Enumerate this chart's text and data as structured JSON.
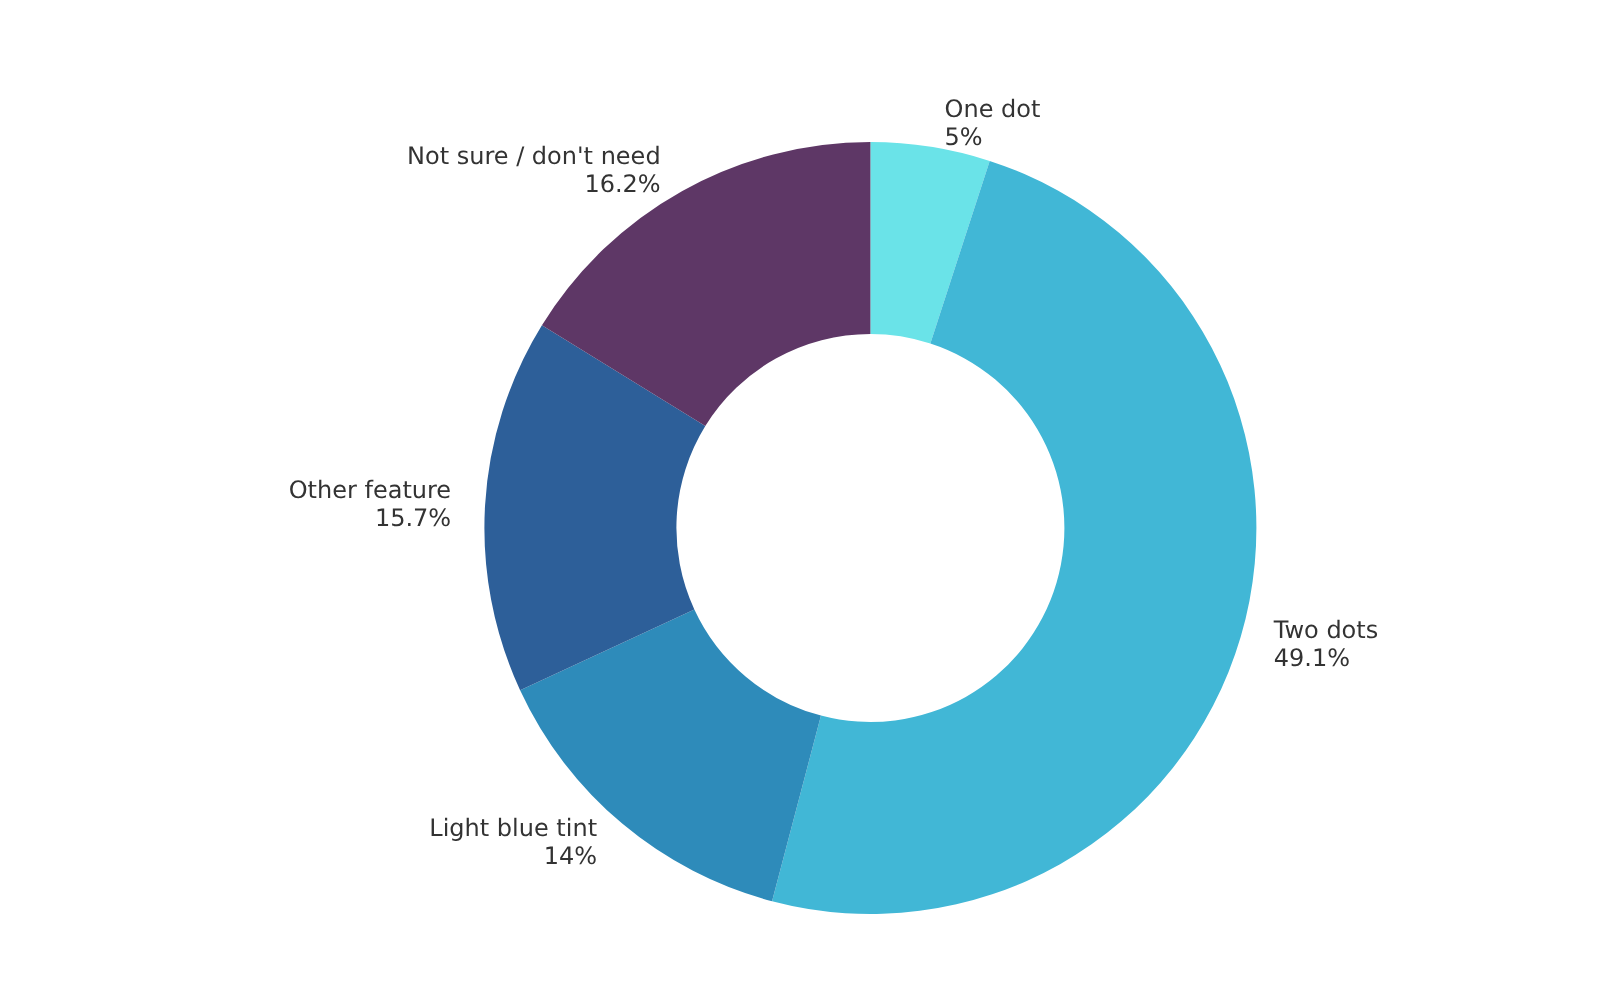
{
  "chart_data": {
    "type": "donut",
    "categories": [
      "One dot",
      "Two dots",
      "Light blue tint",
      "Other feature",
      "Not sure / don't need"
    ],
    "values": [
      5,
      49.1,
      14,
      15.7,
      16.2
    ],
    "value_labels": [
      "5%",
      "49.1%",
      "14%",
      "15.7%",
      "16.2%"
    ],
    "colors": [
      "#6ae3e8",
      "#41b7d6",
      "#2e8bba",
      "#2d5f99",
      "#5e3766"
    ],
    "legend": false
  }
}
